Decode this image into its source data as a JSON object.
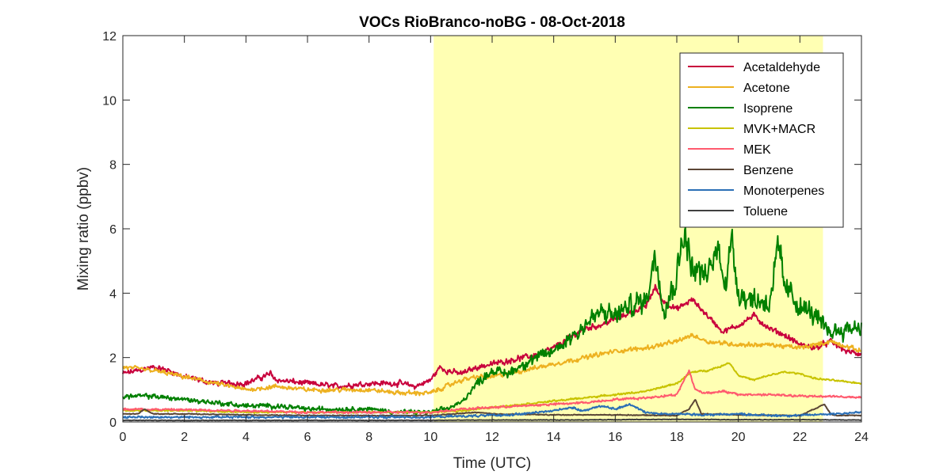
{
  "chart_data": {
    "type": "line",
    "title": "VOCs RioBranco-noBG - 08-Oct-2018",
    "xlabel": "Time (UTC)",
    "ylabel": "Mixing ratio (ppbv)",
    "xlim": [
      0,
      24
    ],
    "ylim": [
      0,
      12
    ],
    "xticks": [
      0,
      2,
      4,
      6,
      8,
      10,
      12,
      14,
      16,
      18,
      20,
      22,
      24
    ],
    "yticks": [
      0,
      2,
      4,
      6,
      8,
      10,
      12
    ],
    "grid": false,
    "legend_position": "top-right",
    "highlight_region": {
      "x_start": 10.1,
      "x_end": 22.75,
      "color": "#ffffb3"
    },
    "series": [
      {
        "name": "Acetaldehyde",
        "color": "#c8003c",
        "x": [
          0,
          0.5,
          1,
          1.5,
          2,
          3,
          4,
          4.8,
          5,
          6,
          7,
          8,
          9,
          9.5,
          10,
          10.3,
          10.5,
          11,
          11.5,
          12,
          12.5,
          13,
          13.5,
          14,
          14.5,
          15,
          15.5,
          16,
          16.5,
          17,
          17.3,
          17.5,
          18,
          18.5,
          19,
          19.5,
          20,
          20.5,
          21,
          21.5,
          22,
          22.5,
          23,
          23.5,
          24
        ],
        "y": [
          1.5,
          1.6,
          1.7,
          1.6,
          1.4,
          1.2,
          1.2,
          1.5,
          1.3,
          1.2,
          1.1,
          1.2,
          1.2,
          1.1,
          1.3,
          1.7,
          1.6,
          1.5,
          1.7,
          1.8,
          1.9,
          2.0,
          2.1,
          2.3,
          2.6,
          2.9,
          3.0,
          3.2,
          3.4,
          3.6,
          4.2,
          3.8,
          3.5,
          3.8,
          3.3,
          2.8,
          3.0,
          3.3,
          2.9,
          2.7,
          2.4,
          2.3,
          2.5,
          2.2,
          2.1
        ]
      },
      {
        "name": "Acetone",
        "color": "#edb120",
        "x": [
          0,
          1,
          2,
          3,
          4,
          5,
          6,
          7,
          8,
          9,
          10,
          10.5,
          11,
          11.5,
          12,
          13,
          14,
          15,
          16,
          17,
          18,
          18.5,
          19,
          20,
          21,
          22,
          22.5,
          23,
          24
        ],
        "y": [
          1.7,
          1.6,
          1.4,
          1.2,
          1.0,
          1.1,
          1.0,
          1.0,
          1.0,
          0.9,
          0.9,
          1.1,
          1.3,
          1.4,
          1.4,
          1.6,
          1.8,
          2.0,
          2.2,
          2.3,
          2.5,
          2.7,
          2.5,
          2.4,
          2.4,
          2.3,
          2.4,
          2.5,
          2.2
        ]
      },
      {
        "name": "Isoprene",
        "color": "#008000",
        "x": [
          0,
          1,
          2,
          3,
          4,
          5,
          6,
          7,
          8,
          9,
          10,
          10.5,
          11,
          11.5,
          12,
          12.5,
          13,
          13.5,
          14,
          14.5,
          15,
          15.5,
          16,
          16.5,
          17,
          17.3,
          17.6,
          18,
          18.2,
          18.5,
          19,
          19.3,
          19.6,
          19.8,
          20,
          20.5,
          21,
          21.3,
          21.5,
          22,
          22.5,
          22.8,
          23,
          23.5,
          24
        ],
        "y": [
          0.8,
          0.8,
          0.7,
          0.6,
          0.5,
          0.5,
          0.4,
          0.4,
          0.4,
          0.3,
          0.3,
          0.4,
          0.6,
          1.2,
          1.6,
          1.5,
          1.8,
          2.0,
          2.2,
          2.6,
          3.0,
          3.4,
          3.3,
          3.6,
          3.8,
          5.2,
          3.5,
          4.5,
          6.0,
          4.8,
          4.5,
          5.4,
          4.4,
          5.7,
          4.0,
          3.8,
          3.7,
          5.4,
          4.2,
          3.6,
          3.3,
          2.9,
          2.8,
          2.9,
          3.0
        ]
      },
      {
        "name": "MVK+MACR",
        "color": "#c8c300",
        "x": [
          0,
          2,
          4,
          6,
          8,
          10,
          11,
          12,
          13,
          14,
          15,
          16,
          17,
          18,
          18.5,
          19,
          19.5,
          19.7,
          20,
          20.5,
          21,
          21.5,
          22,
          22.5,
          23,
          24
        ],
        "y": [
          0.35,
          0.35,
          0.3,
          0.3,
          0.3,
          0.3,
          0.35,
          0.45,
          0.55,
          0.65,
          0.75,
          0.85,
          0.95,
          1.2,
          1.55,
          1.6,
          1.75,
          1.85,
          1.45,
          1.3,
          1.45,
          1.55,
          1.5,
          1.35,
          1.3,
          1.2
        ]
      },
      {
        "name": "MEK",
        "color": "#ff5a6e",
        "x": [
          0,
          2,
          4,
          6,
          8,
          10,
          11,
          12,
          13,
          14,
          15,
          16,
          17,
          18,
          18.4,
          18.6,
          18.9,
          19.5,
          20,
          21,
          22,
          23,
          24
        ],
        "y": [
          0.4,
          0.38,
          0.35,
          0.3,
          0.3,
          0.3,
          0.4,
          0.45,
          0.5,
          0.55,
          0.6,
          0.7,
          0.75,
          0.85,
          1.6,
          1.0,
          0.9,
          0.95,
          0.85,
          0.85,
          0.8,
          0.8,
          0.75
        ]
      },
      {
        "name": "Benzene",
        "color": "#5b4636",
        "x": [
          0,
          0.5,
          0.7,
          1,
          2,
          4,
          6,
          8,
          10,
          11.5,
          12,
          14,
          16,
          18,
          18.4,
          18.6,
          18.8,
          20,
          22,
          22.8,
          23,
          23.2,
          24
        ],
        "y": [
          0.25,
          0.25,
          0.4,
          0.25,
          0.25,
          0.22,
          0.2,
          0.2,
          0.2,
          0.3,
          0.25,
          0.22,
          0.22,
          0.2,
          0.4,
          0.7,
          0.25,
          0.22,
          0.2,
          0.55,
          0.25,
          0.2,
          0.2
        ]
      },
      {
        "name": "Monoterpenes",
        "color": "#2b6fb6",
        "x": [
          0,
          2,
          4,
          6,
          8,
          10,
          11,
          12,
          13,
          14,
          14.5,
          15,
          15.5,
          16,
          16.5,
          17,
          17.5,
          18,
          19,
          20,
          21,
          22,
          23,
          24
        ],
        "y": [
          0.15,
          0.15,
          0.15,
          0.15,
          0.15,
          0.15,
          0.18,
          0.2,
          0.25,
          0.35,
          0.45,
          0.35,
          0.5,
          0.4,
          0.55,
          0.3,
          0.25,
          0.25,
          0.22,
          0.25,
          0.2,
          0.2,
          0.25,
          0.3
        ]
      },
      {
        "name": "Toluene",
        "color": "#404040",
        "x": [
          0,
          2,
          4,
          6,
          8,
          10,
          12,
          14,
          16,
          18,
          20,
          22,
          24
        ],
        "y": [
          0.05,
          0.05,
          0.05,
          0.05,
          0.05,
          0.05,
          0.06,
          0.06,
          0.07,
          0.08,
          0.07,
          0.07,
          0.06
        ]
      }
    ]
  }
}
